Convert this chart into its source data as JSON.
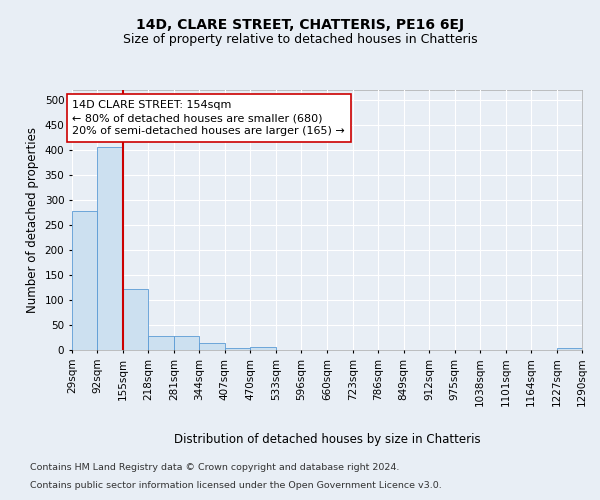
{
  "title": "14D, CLARE STREET, CHATTERIS, PE16 6EJ",
  "subtitle": "Size of property relative to detached houses in Chatteris",
  "xlabel": "Distribution of detached houses by size in Chatteris",
  "ylabel": "Number of detached properties",
  "bar_edges": [
    29,
    92,
    155,
    218,
    281,
    344,
    407,
    470,
    533,
    596,
    660,
    723,
    786,
    849,
    912,
    975,
    1038,
    1101,
    1164,
    1227,
    1290
  ],
  "bar_heights": [
    278,
    406,
    122,
    28,
    28,
    14,
    5,
    6,
    0,
    0,
    0,
    0,
    0,
    0,
    0,
    0,
    0,
    0,
    0,
    5,
    0
  ],
  "bar_color": "#cce0f0",
  "bar_edge_color": "#5b9bd5",
  "property_size": 154,
  "vline_color": "#cc0000",
  "annotation_line1": "14D CLARE STREET: 154sqm",
  "annotation_line2": "← 80% of detached houses are smaller (680)",
  "annotation_line3": "20% of semi-detached houses are larger (165) →",
  "annotation_box_color": "#ffffff",
  "annotation_box_edge": "#cc0000",
  "ylim": [
    0,
    520
  ],
  "yticks": [
    0,
    50,
    100,
    150,
    200,
    250,
    300,
    350,
    400,
    450,
    500
  ],
  "footnote1": "Contains HM Land Registry data © Crown copyright and database right 2024.",
  "footnote2": "Contains public sector information licensed under the Open Government Licence v3.0.",
  "bg_color": "#e8eef5",
  "plot_bg_color": "#e8eef5",
  "grid_color": "#ffffff",
  "title_fontsize": 10,
  "subtitle_fontsize": 9,
  "axis_label_fontsize": 8.5,
  "tick_fontsize": 7.5,
  "annotation_fontsize": 8,
  "footnote_fontsize": 6.8
}
